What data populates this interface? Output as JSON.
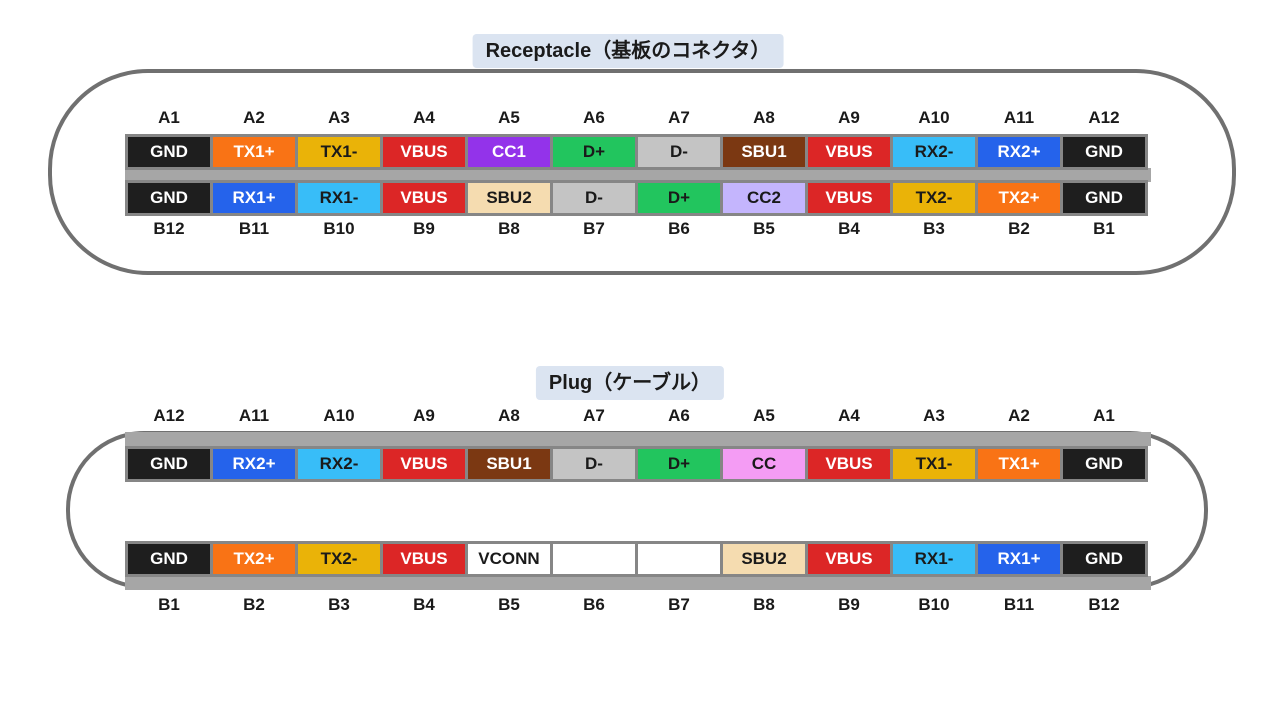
{
  "receptacle": {
    "title": "Receptacle（基板のコネクタ）",
    "top_labels": [
      "A1",
      "A2",
      "A3",
      "A4",
      "A5",
      "A6",
      "A7",
      "A8",
      "A9",
      "A10",
      "A11",
      "A12"
    ],
    "top_pins": [
      {
        "text": "GND",
        "bg": "#1e1e1e",
        "fg": "#ffffff"
      },
      {
        "text": "TX1+",
        "bg": "#f97315",
        "fg": "#ffffff"
      },
      {
        "text": "TX1-",
        "bg": "#eab308",
        "fg": "#1a1a1a"
      },
      {
        "text": "VBUS",
        "bg": "#dc2626",
        "fg": "#ffffff"
      },
      {
        "text": "CC1",
        "bg": "#9333ea",
        "fg": "#ffffff"
      },
      {
        "text": "D+",
        "bg": "#22c55e",
        "fg": "#1a1a1a"
      },
      {
        "text": "D-",
        "bg": "#c4c4c4",
        "fg": "#1a1a1a"
      },
      {
        "text": "SBU1",
        "bg": "#7b3812",
        "fg": "#ffffff"
      },
      {
        "text": "VBUS",
        "bg": "#dc2626",
        "fg": "#ffffff"
      },
      {
        "text": "RX2-",
        "bg": "#38bdf8",
        "fg": "#1a1a1a"
      },
      {
        "text": "RX2+",
        "bg": "#2563eb",
        "fg": "#ffffff"
      },
      {
        "text": "GND",
        "bg": "#1e1e1e",
        "fg": "#ffffff"
      }
    ],
    "bottom_pins": [
      {
        "text": "GND",
        "bg": "#1e1e1e",
        "fg": "#ffffff"
      },
      {
        "text": "RX1+",
        "bg": "#2563eb",
        "fg": "#ffffff"
      },
      {
        "text": "RX1-",
        "bg": "#38bdf8",
        "fg": "#1a1a1a"
      },
      {
        "text": "VBUS",
        "bg": "#dc2626",
        "fg": "#ffffff"
      },
      {
        "text": "SBU2",
        "bg": "#f5dcb0",
        "fg": "#1a1a1a"
      },
      {
        "text": "D-",
        "bg": "#c4c4c4",
        "fg": "#1a1a1a"
      },
      {
        "text": "D+",
        "bg": "#22c55e",
        "fg": "#1a1a1a"
      },
      {
        "text": "CC2",
        "bg": "#c4b5fd",
        "fg": "#1a1a1a"
      },
      {
        "text": "VBUS",
        "bg": "#dc2626",
        "fg": "#ffffff"
      },
      {
        "text": "TX2-",
        "bg": "#eab308",
        "fg": "#1a1a1a"
      },
      {
        "text": "TX2+",
        "bg": "#f97315",
        "fg": "#ffffff"
      },
      {
        "text": "GND",
        "bg": "#1e1e1e",
        "fg": "#ffffff"
      }
    ],
    "bottom_labels": [
      "B12",
      "B11",
      "B10",
      "B9",
      "B8",
      "B7",
      "B6",
      "B5",
      "B4",
      "B3",
      "B2",
      "B1"
    ]
  },
  "plug": {
    "title": "Plug（ケーブル）",
    "top_labels": [
      "A12",
      "A11",
      "A10",
      "A9",
      "A8",
      "A7",
      "A6",
      "A5",
      "A4",
      "A3",
      "A2",
      "A1"
    ],
    "top_pins": [
      {
        "text": "GND",
        "bg": "#1e1e1e",
        "fg": "#ffffff"
      },
      {
        "text": "RX2+",
        "bg": "#2563eb",
        "fg": "#ffffff"
      },
      {
        "text": "RX2-",
        "bg": "#38bdf8",
        "fg": "#1a1a1a"
      },
      {
        "text": "VBUS",
        "bg": "#dc2626",
        "fg": "#ffffff"
      },
      {
        "text": "SBU1",
        "bg": "#7b3812",
        "fg": "#ffffff"
      },
      {
        "text": "D-",
        "bg": "#c4c4c4",
        "fg": "#1a1a1a"
      },
      {
        "text": "D+",
        "bg": "#22c55e",
        "fg": "#1a1a1a"
      },
      {
        "text": "CC",
        "bg": "#f49cf4",
        "fg": "#1a1a1a"
      },
      {
        "text": "VBUS",
        "bg": "#dc2626",
        "fg": "#ffffff"
      },
      {
        "text": "TX1-",
        "bg": "#eab308",
        "fg": "#1a1a1a"
      },
      {
        "text": "TX1+",
        "bg": "#f97315",
        "fg": "#ffffff"
      },
      {
        "text": "GND",
        "bg": "#1e1e1e",
        "fg": "#ffffff"
      }
    ],
    "bottom_pins": [
      {
        "text": "GND",
        "bg": "#1e1e1e",
        "fg": "#ffffff"
      },
      {
        "text": "TX2+",
        "bg": "#f97315",
        "fg": "#ffffff"
      },
      {
        "text": "TX2-",
        "bg": "#eab308",
        "fg": "#1a1a1a"
      },
      {
        "text": "VBUS",
        "bg": "#dc2626",
        "fg": "#ffffff"
      },
      {
        "text": "VCONN",
        "bg": "#ffffff",
        "fg": "#1a1a1a"
      },
      {
        "text": "",
        "bg": "#ffffff",
        "fg": "#1a1a1a"
      },
      {
        "text": "",
        "bg": "#ffffff",
        "fg": "#1a1a1a"
      },
      {
        "text": "SBU2",
        "bg": "#f5dcb0",
        "fg": "#1a1a1a"
      },
      {
        "text": "VBUS",
        "bg": "#dc2626",
        "fg": "#ffffff"
      },
      {
        "text": "RX1-",
        "bg": "#38bdf8",
        "fg": "#1a1a1a"
      },
      {
        "text": "RX1+",
        "bg": "#2563eb",
        "fg": "#ffffff"
      },
      {
        "text": "GND",
        "bg": "#1e1e1e",
        "fg": "#ffffff"
      }
    ],
    "bottom_labels": [
      "B1",
      "B2",
      "B3",
      "B4",
      "B5",
      "B6",
      "B7",
      "B8",
      "B9",
      "B10",
      "B11",
      "B12"
    ]
  }
}
